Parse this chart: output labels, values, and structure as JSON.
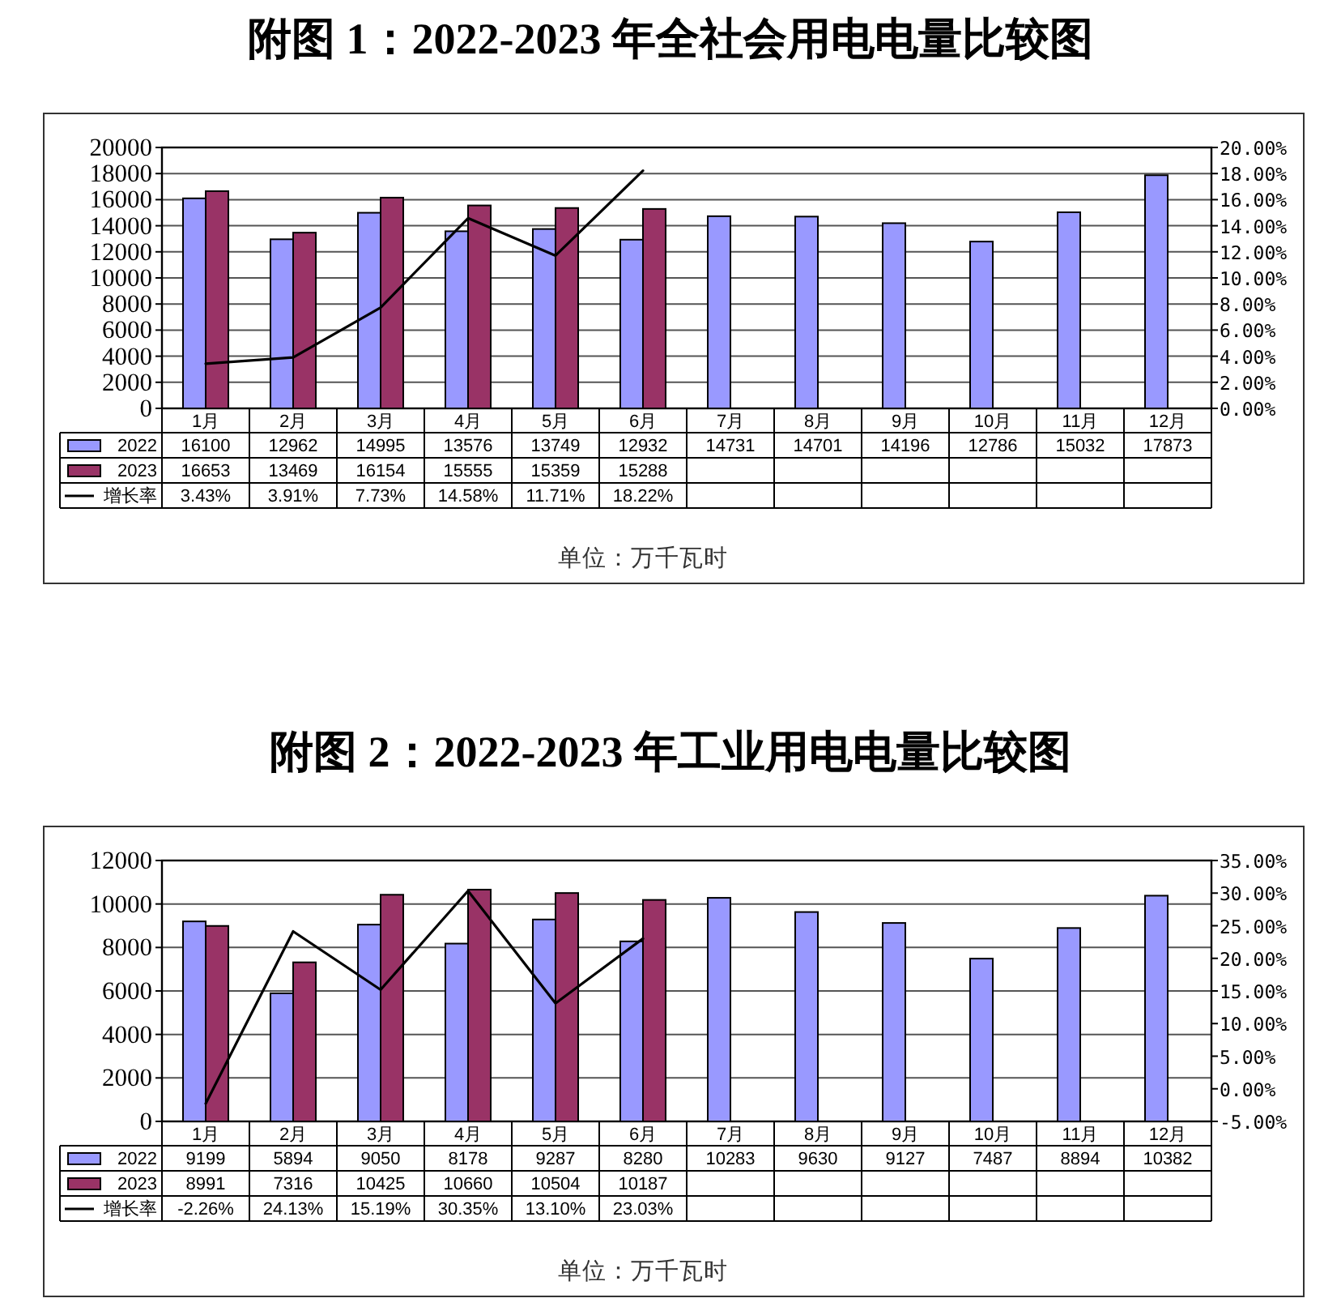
{
  "chart_data": [
    {
      "type": "bar",
      "title": "附图 1：2022-2023 年全社会用电电量比较图",
      "categories": [
        "1月",
        "2月",
        "3月",
        "4月",
        "5月",
        "6月",
        "7月",
        "8月",
        "9月",
        "10月",
        "11月",
        "12月"
      ],
      "series": [
        {
          "name": "2022",
          "color": "#9999ff",
          "values": [
            16100,
            12962,
            14995,
            13576,
            13749,
            12932,
            14731,
            14701,
            14196,
            12786,
            15032,
            17873
          ],
          "value_labels": [
            "16100",
            "12962",
            "14995",
            "13576",
            "13749",
            "12932",
            "14731",
            "14701",
            "14196",
            "12786",
            "15032",
            "17873"
          ]
        },
        {
          "name": "2023",
          "color": "#993366",
          "values": [
            16653,
            13469,
            16154,
            15555,
            15359,
            15288,
            null,
            null,
            null,
            null,
            null,
            null
          ],
          "value_labels": [
            "16653",
            "13469",
            "16154",
            "15555",
            "15359",
            "15288",
            null,
            null,
            null,
            null,
            null,
            null
          ]
        },
        {
          "name": "增长率",
          "type": "line",
          "axis": "y2",
          "color": "#000000",
          "values": [
            3.43,
            3.91,
            7.73,
            14.58,
            11.71,
            18.22,
            null,
            null,
            null,
            null,
            null,
            null
          ],
          "value_labels": [
            "3.43%",
            "3.91%",
            "7.73%",
            "14.58%",
            "11.71%",
            "18.22%",
            null,
            null,
            null,
            null,
            null,
            null
          ]
        }
      ],
      "ylim": [
        0,
        20000
      ],
      "yticks": [
        0,
        2000,
        4000,
        6000,
        8000,
        10000,
        12000,
        14000,
        16000,
        18000,
        20000
      ],
      "y2lim": [
        0,
        20
      ],
      "y2ticks": [
        {
          "value": 0,
          "label": "0.00%"
        },
        {
          "value": 2,
          "label": "2.00%"
        },
        {
          "value": 4,
          "label": "4.00%"
        },
        {
          "value": 6,
          "label": "6.00%"
        },
        {
          "value": 8,
          "label": "8.00%"
        },
        {
          "value": 10,
          "label": "10.00%"
        },
        {
          "value": 12,
          "label": "12.00%"
        },
        {
          "value": 14,
          "label": "14.00%"
        },
        {
          "value": 16,
          "label": "16.00%"
        },
        {
          "value": 18,
          "label": "18.00%"
        },
        {
          "value": 20,
          "label": "20.00%"
        }
      ],
      "grid": "y",
      "legend": "bottom left",
      "annotations": [
        "单位：万千瓦时"
      ]
    },
    {
      "type": "bar",
      "title": "附图 2：2022-2023 年工业用电电量比较图",
      "categories": [
        "1月",
        "2月",
        "3月",
        "4月",
        "5月",
        "6月",
        "7月",
        "8月",
        "9月",
        "10月",
        "11月",
        "12月"
      ],
      "series": [
        {
          "name": "2022",
          "color": "#9999ff",
          "values": [
            9199,
            5894,
            9050,
            8178,
            9287,
            8280,
            10283,
            9630,
            9127,
            7487,
            8894,
            10382
          ],
          "value_labels": [
            "9199",
            "5894",
            "9050",
            "8178",
            "9287",
            "8280",
            "10283",
            "9630",
            "9127",
            "7487",
            "8894",
            "10382"
          ]
        },
        {
          "name": "2023",
          "color": "#993366",
          "values": [
            8991,
            7316,
            10425,
            10660,
            10504,
            10187,
            null,
            null,
            null,
            null,
            null,
            null
          ],
          "value_labels": [
            "8991",
            "7316",
            "10425",
            "10660",
            "10504",
            "10187",
            null,
            null,
            null,
            null,
            null,
            null
          ]
        },
        {
          "name": "增长率",
          "type": "line",
          "axis": "y2",
          "color": "#000000",
          "values": [
            -2.26,
            24.13,
            15.19,
            30.35,
            13.1,
            23.03,
            null,
            null,
            null,
            null,
            null,
            null
          ],
          "value_labels": [
            "-2.26%",
            "24.13%",
            "15.19%",
            "30.35%",
            "13.10%",
            "23.03%",
            null,
            null,
            null,
            null,
            null,
            null
          ]
        }
      ],
      "ylim": [
        0,
        12000
      ],
      "yticks": [
        0,
        2000,
        4000,
        6000,
        8000,
        10000,
        12000
      ],
      "y2lim": [
        -5,
        35
      ],
      "y2ticks": [
        {
          "value": -5,
          "label": "-5.00%"
        },
        {
          "value": 0,
          "label": "0.00%"
        },
        {
          "value": 5,
          "label": "5.00%"
        },
        {
          "value": 10,
          "label": "10.00%"
        },
        {
          "value": 15,
          "label": "15.00%"
        },
        {
          "value": 20,
          "label": "20.00%"
        },
        {
          "value": 25,
          "label": "25.00%"
        },
        {
          "value": 30,
          "label": "30.00%"
        },
        {
          "value": 35,
          "label": "35.00%"
        }
      ],
      "grid": "y",
      "legend": "bottom left",
      "annotations": [
        "单位：万千瓦时"
      ]
    }
  ]
}
